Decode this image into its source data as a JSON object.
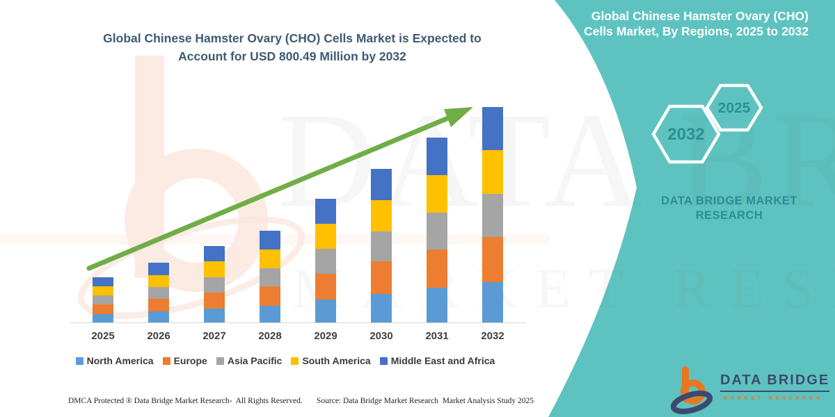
{
  "colors": {
    "teal_panel": "#5ec3c0",
    "teal_dark_text": "#2d8c99",
    "hex_label": "#2e8f92",
    "title_text": "#3e5a73",
    "arrow_green": "#70ad47",
    "logo_navy": "#3c4a70",
    "logo_orange": "#e87722",
    "white": "#ffffff"
  },
  "main": {
    "title_line1": "Global Chinese Hamster Ovary (CHO) Cells Market is Expected to",
    "title_line2": "Account for USD 800.49 Million by 2032"
  },
  "chart_data": {
    "type": "bar",
    "stacked": true,
    "title": "Global Chinese Hamster Ovary (CHO) Cells Market is Expected to Account for USD 800.49 Million by 2032",
    "unit": "USD Million",
    "categories": [
      "2025",
      "2026",
      "2027",
      "2028",
      "2029",
      "2030",
      "2031",
      "2032"
    ],
    "series": [
      {
        "name": "North America",
        "color": "#5b9bd5",
        "values": [
          33,
          43,
          54,
          65,
          88,
          109,
          131,
          153
        ]
      },
      {
        "name": "Europe",
        "color": "#ed7d31",
        "values": [
          36,
          47,
          60,
          71,
          96,
          119,
          143,
          167
        ]
      },
      {
        "name": "Asia Pacific",
        "color": "#a5a5a5",
        "values": [
          34,
          44,
          57,
          68,
          91,
          113,
          136,
          159
        ]
      },
      {
        "name": "South America",
        "color": "#ffc000",
        "values": [
          33,
          44,
          57,
          68,
          92,
          114,
          138,
          161
        ]
      },
      {
        "name": "Middle East and Africa",
        "color": "#4472c4",
        "values": [
          34,
          46,
          58,
          70,
          94,
          116,
          139,
          160.49
        ]
      }
    ],
    "totals": [
      170,
      224,
      286,
      342,
      461,
      571,
      687,
      800.49
    ],
    "xlabel": "",
    "ylabel": "",
    "y_axis_visible": false,
    "grid": false,
    "legend_position": "bottom",
    "values_estimated_from_pixels": true,
    "annotations": [
      "Green upward trend arrow spanning 2025 to 2032"
    ]
  },
  "watermark": {
    "line1": "DATA BRIDGE",
    "line2": "MARKET RESEARCH"
  },
  "footer": {
    "dmca": "DMCA Protected ® Data Bridge Market Research-  All Rights Reserved.",
    "source": "Source: Data Bridge Market Research  Market Analysis Study 2025"
  },
  "side_panel": {
    "title": "Global Chinese Hamster Ovary (CHO) Cells Market, By Regions, 2025 to 2032",
    "hexagons": [
      {
        "label": "2032"
      },
      {
        "label": "2025"
      }
    ],
    "brand_text": "DATA BRIDGE MARKET RESEARCH",
    "logo": {
      "name": "DATA BRIDGE",
      "subtitle": "MARKET RESEARCH"
    }
  }
}
